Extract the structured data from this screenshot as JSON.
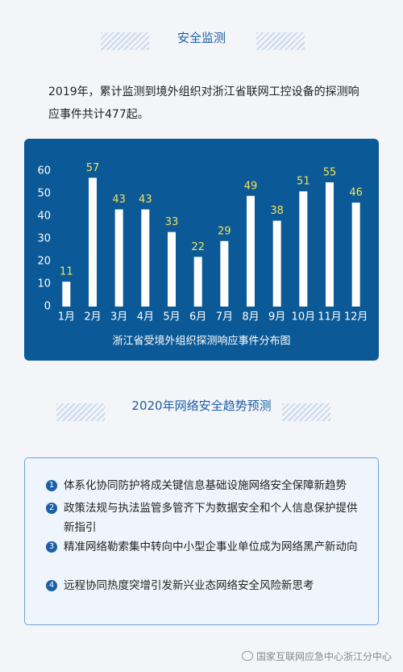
{
  "section1_title": "安全监测",
  "intro": "2019年，累计监测到境外组织对浙江省联网工控设备的探测响应事件共计477起。",
  "chart_data": {
    "type": "bar",
    "title": "浙江省受境外组织探测响应事件分布图",
    "categories": [
      "1月",
      "2月",
      "3月",
      "4月",
      "5月",
      "6月",
      "7月",
      "8月",
      "9月",
      "10月",
      "11月",
      "12月"
    ],
    "values": [
      11,
      57,
      43,
      43,
      33,
      22,
      29,
      49,
      38,
      51,
      55,
      46
    ],
    "color": "#ffffff",
    "label_color": "#f3e35a",
    "ylim": [
      0,
      60
    ],
    "yticks": [
      0,
      10,
      20,
      30,
      40,
      50,
      60
    ]
  },
  "section2_title": "2020年网络安全趋势预测",
  "trends": [
    {
      "number": 1,
      "text": "体系化协同防护将成关键信息基础设施网络安全保障新趋势"
    },
    {
      "number": 2,
      "text": "政策法规与执法监管多管齐下为数据安全和个人信息保护提供新指引"
    },
    {
      "number": 3,
      "text": "精准网络勒索集中转向中小型企事业单位成为网络黑产新动向"
    },
    {
      "number": 4,
      "text": "远程协同热度突增引发新兴业态网络安全风险新思考"
    }
  ],
  "footer": "国家互联网应急中心浙江分中心"
}
